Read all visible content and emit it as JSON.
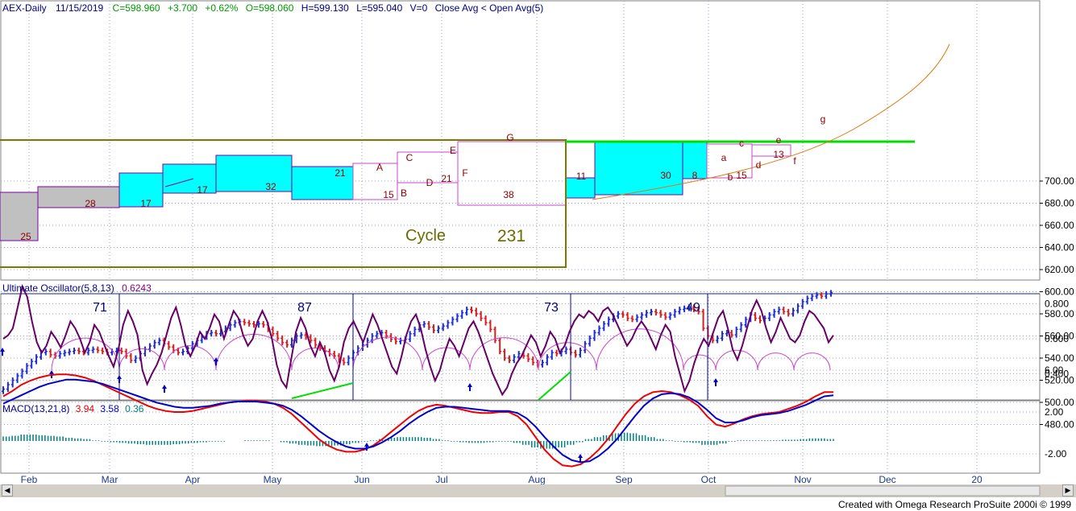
{
  "header": {
    "symbol": "AEX-Daily",
    "date": "11/15/2019",
    "close": "C=598.960",
    "change": "+3.700",
    "change_pct": "+0.62%",
    "open": "O=598.060",
    "high": "H=599.130",
    "low": "L=595.040",
    "volume": "V=0",
    "note": "Close Avg < Open Avg(5)"
  },
  "oscillator": {
    "title": "Ultimate Oscillator(5,8,13)",
    "value": "0.6243"
  },
  "macd": {
    "title": "MACD(13,21,8)",
    "v1": "3.94",
    "v2": "3.58",
    "v3": "0.36"
  },
  "cycle": {
    "label": "Cycle",
    "value": "231"
  },
  "footer": {
    "credit": "Created with Omega Research ProSuite 2000i © 1999"
  },
  "colors": {
    "up_bar": "#1f2fd6",
    "down_bar": "#d42020",
    "cyan_box": "#00ffff",
    "gray_box": "#c0c0c0",
    "trend_line": "#00dd00",
    "cycle_line": "#7a7a00",
    "oscillator": "#660066",
    "arcs": "#cc44cc",
    "macd_red": "#ee0000",
    "macd_blue": "#0000cc",
    "histogram": "#008080"
  },
  "chart_data": [
    {
      "type": "ohlc",
      "ylim": [
        470,
        710
      ],
      "y_ticks": [
        "480.00",
        "500.00",
        "520.00",
        "540.00",
        "560.00",
        "580.00",
        "600.00",
        "620.00",
        "640.00",
        "660.00",
        "680.00",
        "700.00"
      ],
      "x_ticks": [
        "Feb",
        "Mar",
        "Apr",
        "May",
        "Jun",
        "Jul",
        "Aug",
        "Sep",
        "Oct",
        "Nov",
        "Dec",
        "20"
      ],
      "closes": [
        512,
        516,
        520,
        524,
        528,
        533,
        537,
        541,
        545,
        546,
        543,
        542,
        544,
        545,
        546,
        547,
        546,
        545,
        547,
        548,
        547,
        546,
        545,
        546,
        547,
        546,
        542,
        538,
        540,
        544,
        548,
        551,
        554,
        556,
        553,
        550,
        547,
        545,
        546,
        549,
        553,
        556,
        559,
        562,
        563,
        562,
        564,
        567,
        570,
        572,
        573,
        572,
        571,
        570,
        571,
        570,
        566,
        562,
        558,
        554,
        552,
        556,
        560,
        561,
        559,
        556,
        552,
        549,
        546,
        544,
        542,
        538,
        536,
        540,
        545,
        549,
        552,
        556,
        560,
        562,
        563,
        560,
        557,
        555,
        556,
        557,
        562,
        566,
        570,
        571,
        568,
        565,
        567,
        569,
        572,
        575,
        578,
        581,
        584,
        583,
        580,
        576,
        572,
        566,
        556,
        546,
        540,
        538,
        541,
        544,
        542,
        539,
        536,
        534,
        536,
        541,
        545,
        544,
        546,
        548,
        545,
        543,
        547,
        553,
        558,
        563,
        567,
        571,
        575,
        578,
        580,
        579,
        576,
        575,
        577,
        579,
        581,
        582,
        581,
        579,
        577,
        579,
        582,
        584,
        585,
        586,
        584,
        582,
        567,
        560,
        556,
        558,
        562,
        563,
        561,
        566,
        570,
        575,
        579,
        576,
        574,
        576,
        579,
        582,
        584,
        582,
        580,
        583,
        587,
        591,
        594,
        596,
        597,
        596,
        598,
        599
      ],
      "boxes": [
        "25",
        "28",
        "17",
        "17",
        "32",
        "21",
        "15",
        "21",
        "38",
        "11",
        "30",
        "8",
        "15",
        "13"
      ],
      "markers": [
        "A",
        "B",
        "C",
        "D",
        "E",
        "F",
        "G",
        "a",
        "b",
        "c",
        "d",
        "e",
        "f",
        "g"
      ],
      "horizontal_levels": [
        585,
        585
      ]
    },
    {
      "type": "line",
      "name": "Ultimate Oscillator(5,8,13)",
      "ylim": [
        0.25,
        0.9
      ],
      "y_ticks": [
        "0.400",
        "0.600",
        "0.800"
      ],
      "cycle_counts": [
        "71",
        "87",
        "73",
        "49"
      ],
      "values": [
        0.6,
        0.62,
        0.66,
        0.78,
        0.9,
        0.84,
        0.7,
        0.58,
        0.52,
        0.56,
        0.64,
        0.6,
        0.55,
        0.62,
        0.7,
        0.66,
        0.6,
        0.52,
        0.58,
        0.68,
        0.64,
        0.57,
        0.5,
        0.44,
        0.54,
        0.68,
        0.76,
        0.7,
        0.62,
        0.42,
        0.34,
        0.4,
        0.45,
        0.52,
        0.62,
        0.72,
        0.78,
        0.68,
        0.56,
        0.5,
        0.56,
        0.64,
        0.6,
        0.66,
        0.74,
        0.7,
        0.6,
        0.68,
        0.76,
        0.72,
        0.62,
        0.56,
        0.6,
        0.7,
        0.76,
        0.7,
        0.6,
        0.45,
        0.36,
        0.32,
        0.48,
        0.64,
        0.72,
        0.66,
        0.56,
        0.5,
        0.58,
        0.52,
        0.42,
        0.36,
        0.44,
        0.58,
        0.66,
        0.7,
        0.64,
        0.58,
        0.66,
        0.74,
        0.68,
        0.6,
        0.52,
        0.44,
        0.4,
        0.5,
        0.62,
        0.7,
        0.74,
        0.66,
        0.54,
        0.44,
        0.36,
        0.42,
        0.52,
        0.6,
        0.56,
        0.5,
        0.58,
        0.66,
        0.7,
        0.64,
        0.56,
        0.48,
        0.4,
        0.34,
        0.28,
        0.32,
        0.4,
        0.46,
        0.5,
        0.56,
        0.62,
        0.58,
        0.5,
        0.56,
        0.64,
        0.6,
        0.52,
        0.56,
        0.64,
        0.7,
        0.74,
        0.72,
        0.76,
        0.74,
        0.7,
        0.76,
        0.78,
        0.74,
        0.68,
        0.62,
        0.56,
        0.6,
        0.66,
        0.7,
        0.66,
        0.6,
        0.54,
        0.62,
        0.68,
        0.64,
        0.5,
        0.4,
        0.3,
        0.36,
        0.46,
        0.54,
        0.6,
        0.56,
        0.64,
        0.72,
        0.76,
        0.66,
        0.54,
        0.48,
        0.56,
        0.66,
        0.76,
        0.82,
        0.76,
        0.66,
        0.58,
        0.64,
        0.72,
        0.66,
        0.6,
        0.58,
        0.62,
        0.7,
        0.76,
        0.74,
        0.7,
        0.66,
        0.58,
        0.62
      ]
    },
    {
      "type": "line",
      "name": "MACD(13,21,8)",
      "ylim": [
        -4,
        7
      ],
      "y_ticks": [
        "-2.00",
        "2.00",
        "6.00"
      ],
      "series": [
        {
          "name": "3.94",
          "values": [
            3.5,
            4.0,
            4.6,
            5.0,
            5.3,
            5.5,
            5.6,
            5.6,
            5.5,
            5.3,
            5.0,
            4.6,
            4.2,
            3.8,
            3.4,
            3.0,
            2.6,
            2.3,
            2.1,
            2.0,
            2.0,
            2.1,
            2.3,
            2.5,
            2.7,
            2.9,
            3.0,
            3.1,
            3.1,
            3.0,
            2.8,
            2.4,
            1.8,
            1.0,
            0.2,
            -0.6,
            -1.2,
            -1.6,
            -1.8,
            -1.8,
            -1.6,
            -1.2,
            -0.6,
            0.1,
            0.8,
            1.5,
            2.1,
            2.5,
            2.7,
            2.6,
            2.4,
            2.2,
            2.0,
            1.9,
            1.9,
            2.0,
            2.0,
            1.6,
            0.8,
            -0.4,
            -1.6,
            -2.5,
            -3.1,
            -3.2,
            -3.0,
            -2.4,
            -1.6,
            -0.6,
            0.6,
            1.8,
            2.8,
            3.5,
            3.9,
            4.0,
            3.9,
            3.6,
            3.2,
            2.6,
            1.6,
            0.8,
            0.6,
            0.9,
            1.3,
            1.6,
            1.8,
            1.9,
            2.0,
            2.3,
            2.6,
            3.0,
            3.5,
            3.9,
            3.9
          ]
        },
        {
          "name": "3.58",
          "values": [
            2.8,
            3.2,
            3.6,
            4.0,
            4.4,
            4.7,
            4.9,
            5.1,
            5.1,
            5.0,
            4.9,
            4.7,
            4.4,
            4.1,
            3.8,
            3.5,
            3.2,
            2.9,
            2.7,
            2.5,
            2.4,
            2.4,
            2.5,
            2.6,
            2.8,
            2.9,
            3.0,
            3.0,
            3.0,
            2.9,
            2.8,
            2.6,
            2.2,
            1.6,
            0.9,
            0.2,
            -0.4,
            -0.9,
            -1.3,
            -1.5,
            -1.5,
            -1.3,
            -0.9,
            -0.4,
            0.2,
            0.9,
            1.5,
            2.0,
            2.4,
            2.5,
            2.5,
            2.4,
            2.3,
            2.2,
            2.1,
            2.1,
            2.1,
            1.9,
            1.4,
            0.6,
            -0.4,
            -1.3,
            -2.1,
            -2.6,
            -2.8,
            -2.7,
            -2.2,
            -1.5,
            -0.6,
            0.5,
            1.6,
            2.6,
            3.3,
            3.7,
            3.8,
            3.7,
            3.4,
            2.9,
            2.2,
            1.4,
            1.0,
            1.0,
            1.2,
            1.5,
            1.7,
            1.8,
            1.9,
            2.1,
            2.4,
            2.7,
            3.1,
            3.5,
            3.6
          ]
        },
        {
          "name": "0.36",
          "values": [
            0.7,
            0.8,
            1.0,
            1.0,
            0.9,
            0.8,
            0.7,
            0.5,
            0.4,
            0.3,
            0.1,
            -0.1,
            -0.2,
            -0.3,
            -0.4,
            -0.5,
            -0.6,
            -0.6,
            -0.6,
            -0.5,
            -0.4,
            -0.3,
            -0.2,
            -0.1,
            -0.1,
            0.0,
            0.0,
            0.1,
            0.1,
            0.1,
            0.0,
            -0.2,
            -0.4,
            -0.6,
            -0.7,
            -0.8,
            -0.8,
            -0.7,
            -0.5,
            -0.3,
            -0.1,
            0.1,
            0.3,
            0.5,
            0.6,
            0.6,
            0.6,
            0.5,
            0.3,
            0.1,
            -0.1,
            -0.2,
            -0.3,
            -0.3,
            -0.2,
            -0.1,
            -0.1,
            -0.3,
            -0.6,
            -1.0,
            -1.2,
            -1.2,
            -1.0,
            -0.6,
            -0.2,
            0.3,
            0.6,
            0.9,
            1.2,
            1.3,
            1.2,
            0.9,
            0.6,
            0.3,
            0.1,
            -0.1,
            -0.2,
            -0.3,
            -0.6,
            -0.6,
            -0.4,
            -0.1,
            0.1,
            0.1,
            0.1,
            0.1,
            0.1,
            0.2,
            0.2,
            0.3,
            0.4,
            0.4,
            0.3
          ]
        }
      ]
    }
  ]
}
